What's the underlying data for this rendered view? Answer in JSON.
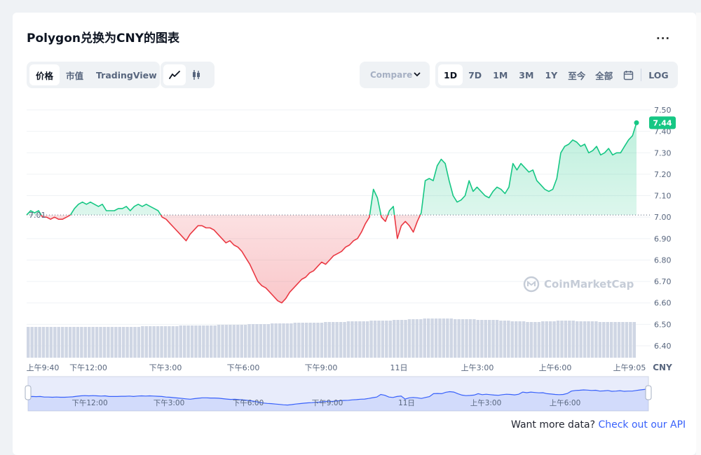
{
  "title": "Polygon兑换为CNY的图表",
  "more_label": "···",
  "tabs_left": [
    {
      "label": "价格",
      "active": true
    },
    {
      "label": "市值",
      "active": false
    },
    {
      "label": "TradingView",
      "active": false
    }
  ],
  "chart_type_icons": [
    {
      "icon": "line-chart-icon",
      "active": true
    },
    {
      "icon": "candlestick-icon",
      "active": false
    }
  ],
  "compare_label": "Compare",
  "ranges": [
    {
      "label": "1D",
      "active": true
    },
    {
      "label": "7D",
      "active": false
    },
    {
      "label": "1M",
      "active": false
    },
    {
      "label": "3M",
      "active": false
    },
    {
      "label": "1Y",
      "active": false
    },
    {
      "label": "至今",
      "active": false
    },
    {
      "label": "全部",
      "active": false
    }
  ],
  "calendar_icon": "calendar-icon",
  "log_label": "LOG",
  "watermark": "CoinMarketCap",
  "footer": {
    "text": "Want more data? ",
    "link": "Check out our API"
  },
  "colors": {
    "up": "#16c784",
    "down": "#ea3943",
    "navigator": "#3861fb",
    "volume": "#cfd6e4"
  },
  "chart_data": {
    "type": "line",
    "currency": "CNY",
    "baseline": 7.01,
    "baseline_label": "7.01",
    "current_value": 7.44,
    "current_label": "7.44",
    "ylim": [
      6.38,
      7.52
    ],
    "y_ticks": [
      "7.50",
      "7.40",
      "7.30",
      "7.20",
      "7.10",
      "7.00",
      "6.90",
      "6.80",
      "6.70",
      "6.60",
      "6.50",
      "6.40"
    ],
    "x_tick_labels": [
      "上午9:40",
      "下午12:00",
      "下午3:00",
      "下午6:00",
      "下午9:00",
      "11日",
      "上午3:00",
      "上午6:00",
      "上午9:05"
    ],
    "navigator_tick_labels": [
      "下午12:00",
      "下午3:00",
      "下午6:00",
      "下午9:00",
      "11日",
      "上午3:00",
      "上午6:00"
    ],
    "x_unit_label": "CNY",
    "series": [
      {
        "values": [
          7.01,
          7.03,
          7.02,
          7.03,
          7.0,
          7.0,
          6.99,
          7.0,
          6.99,
          6.99,
          7.0,
          7.01,
          7.04,
          7.06,
          7.07,
          7.06,
          7.07,
          7.06,
          7.05,
          7.06,
          7.03,
          7.03,
          7.03,
          7.04,
          7.04,
          7.05,
          7.03,
          7.05,
          7.06,
          7.05,
          7.06,
          7.05,
          7.04,
          7.03,
          7.0,
          6.99,
          6.97,
          6.95,
          6.93,
          6.91,
          6.89,
          6.92,
          6.94,
          6.96,
          6.96,
          6.95,
          6.95,
          6.94,
          6.92,
          6.9,
          6.88,
          6.89,
          6.87,
          6.86,
          6.84,
          6.81,
          6.78,
          6.74,
          6.7,
          6.68,
          6.67,
          6.65,
          6.63,
          6.61,
          6.6,
          6.62,
          6.65,
          6.67,
          6.69,
          6.71,
          6.72,
          6.74,
          6.75,
          6.77,
          6.79,
          6.78,
          6.8,
          6.82,
          6.83,
          6.84,
          6.86,
          6.87,
          6.89,
          6.9,
          6.93,
          6.97,
          7.0,
          7.13,
          7.09,
          7.0,
          6.98,
          7.03,
          7.05,
          6.9,
          6.96,
          6.98,
          6.96,
          6.93,
          6.98,
          7.02,
          7.17,
          7.18,
          7.17,
          7.24,
          7.27,
          7.25,
          7.17,
          7.1,
          7.07,
          7.08,
          7.1,
          7.17,
          7.12,
          7.14,
          7.12,
          7.1,
          7.09,
          7.12,
          7.14,
          7.13,
          7.11,
          7.14,
          7.25,
          7.22,
          7.25,
          7.23,
          7.21,
          7.22,
          7.17,
          7.15,
          7.13,
          7.12,
          7.13,
          7.18,
          7.3,
          7.33,
          7.34,
          7.36,
          7.35,
          7.33,
          7.34,
          7.3,
          7.31,
          7.33,
          7.29,
          7.3,
          7.32,
          7.29,
          7.3,
          7.3,
          7.33,
          7.36,
          7.38,
          7.44
        ]
      }
    ],
    "volume": [
      44,
      44,
      44,
      44,
      44,
      44,
      44,
      44,
      44,
      44,
      44,
      44,
      44,
      44,
      44,
      44,
      44,
      44,
      44,
      44,
      44,
      44,
      44,
      44,
      44,
      44,
      44,
      44,
      44,
      44,
      45,
      45,
      45,
      45,
      45,
      45,
      45,
      45,
      45,
      45,
      46,
      46,
      46,
      46,
      46,
      46,
      46,
      46,
      46,
      46,
      47,
      47,
      47,
      47,
      47,
      47,
      47,
      47,
      48,
      48,
      48,
      48,
      48,
      48,
      49,
      49,
      49,
      49,
      49,
      49,
      50,
      50,
      50,
      50,
      50,
      50,
      50,
      50,
      51,
      51,
      51,
      51,
      51,
      51,
      52,
      52,
      52,
      52,
      52,
      52,
      53,
      53,
      53,
      53,
      53,
      53,
      54,
      54,
      54,
      54,
      55,
      55,
      55,
      55,
      56,
      56,
      56,
      56,
      56,
      56,
      56,
      56,
      55,
      55,
      55,
      55,
      55,
      55,
      54,
      54,
      54,
      54,
      54,
      54,
      53,
      53,
      53,
      52,
      52,
      52,
      52,
      51,
      51,
      51,
      51,
      52,
      52,
      52,
      52,
      53,
      53,
      53,
      53,
      53,
      52,
      52,
      52,
      52,
      52,
      52,
      51,
      51,
      51,
      51,
      51,
      51,
      51,
      51,
      51,
      51
    ]
  }
}
